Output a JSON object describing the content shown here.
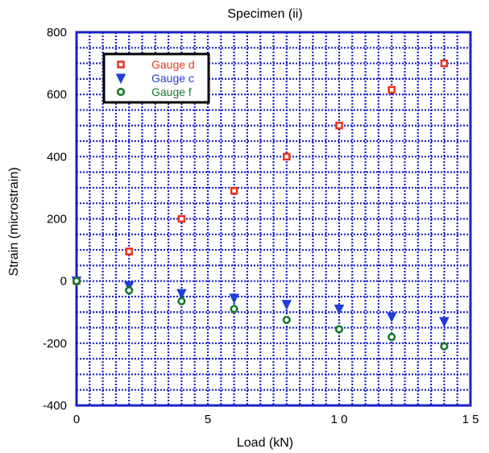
{
  "chart_data": {
    "type": "scatter",
    "title": "Specimen (ii)",
    "xlabel": "Load (kN)",
    "ylabel": "Strain (microstrain)",
    "xlim": [
      0,
      15
    ],
    "ylim": [
      -400,
      800
    ],
    "xticks": [
      0,
      5,
      10,
      15
    ],
    "xtick_labels": [
      "0",
      "5",
      "1 0",
      "1 5"
    ],
    "yticks": [
      -400,
      -200,
      0,
      200,
      400,
      600,
      800
    ],
    "ytick_labels": [
      "-400",
      "-200",
      "0",
      "200",
      "400",
      "600",
      "800"
    ],
    "grid": true,
    "legend_position": "top-left",
    "series": [
      {
        "name": "Gauge d",
        "marker": "square-open",
        "color": "#e8341c",
        "x": [
          0,
          2,
          4,
          6,
          8,
          10,
          12,
          14
        ],
        "y": [
          0,
          95,
          200,
          290,
          400,
          500,
          615,
          700
        ]
      },
      {
        "name": "Gauge c",
        "marker": "triangle-down",
        "color": "#1f3fd6",
        "x": [
          0,
          2,
          4,
          6,
          8,
          10,
          12,
          14
        ],
        "y": [
          0,
          -15,
          -40,
          -55,
          -75,
          -90,
          -115,
          -130
        ]
      },
      {
        "name": "Gauge f",
        "marker": "circle-open",
        "color": "#157a2a",
        "x": [
          0,
          2,
          4,
          6,
          8,
          10,
          12,
          14
        ],
        "y": [
          0,
          -30,
          -65,
          -90,
          -125,
          -155,
          -180,
          -210
        ]
      }
    ]
  }
}
